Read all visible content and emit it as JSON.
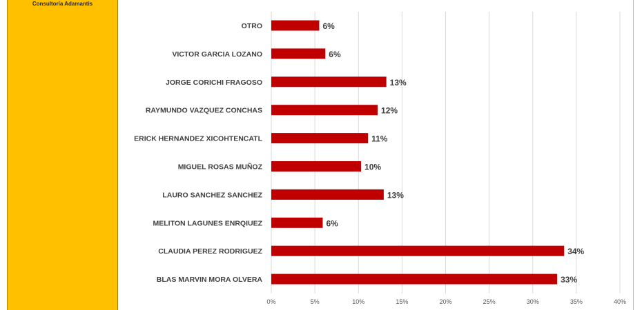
{
  "sidebar": {
    "brand": "Consultoría Adamantis"
  },
  "chart_data": {
    "type": "bar",
    "orientation": "horizontal",
    "categories": [
      "OTRO",
      "VICTOR GARCIA LOZANO",
      "JORGE CORICHI FRAGOSO",
      "RAYMUNDO VAZQUEZ CONCHAS",
      "ERICK HERNANDEZ XICOHTENCATL",
      "MIGUEL ROSAS MUÑOZ",
      "LAURO SANCHEZ SANCHEZ",
      "MELITON LAGUNES ENRQIUEZ",
      "CLAUDIA PEREZ RODRIGUEZ",
      "BLAS MARVIN MORA OLVERA"
    ],
    "values": [
      5.5,
      6.2,
      13.2,
      12.2,
      11.1,
      10.3,
      12.9,
      5.9,
      33.6,
      32.8
    ],
    "data_labels": [
      "6%",
      "6%",
      "13%",
      "12%",
      "11%",
      "10%",
      "13%",
      "6%",
      "34%",
      "33%"
    ],
    "xlim": [
      0,
      40
    ],
    "xticks": [
      0,
      5,
      10,
      15,
      20,
      25,
      30,
      35,
      40
    ],
    "xtick_labels": [
      "0%",
      "5%",
      "10%",
      "15%",
      "20%",
      "25%",
      "30%",
      "35%",
      "40%"
    ],
    "grid": true,
    "bar_color": "#c00000",
    "grid_color": "#d9d9d9"
  }
}
